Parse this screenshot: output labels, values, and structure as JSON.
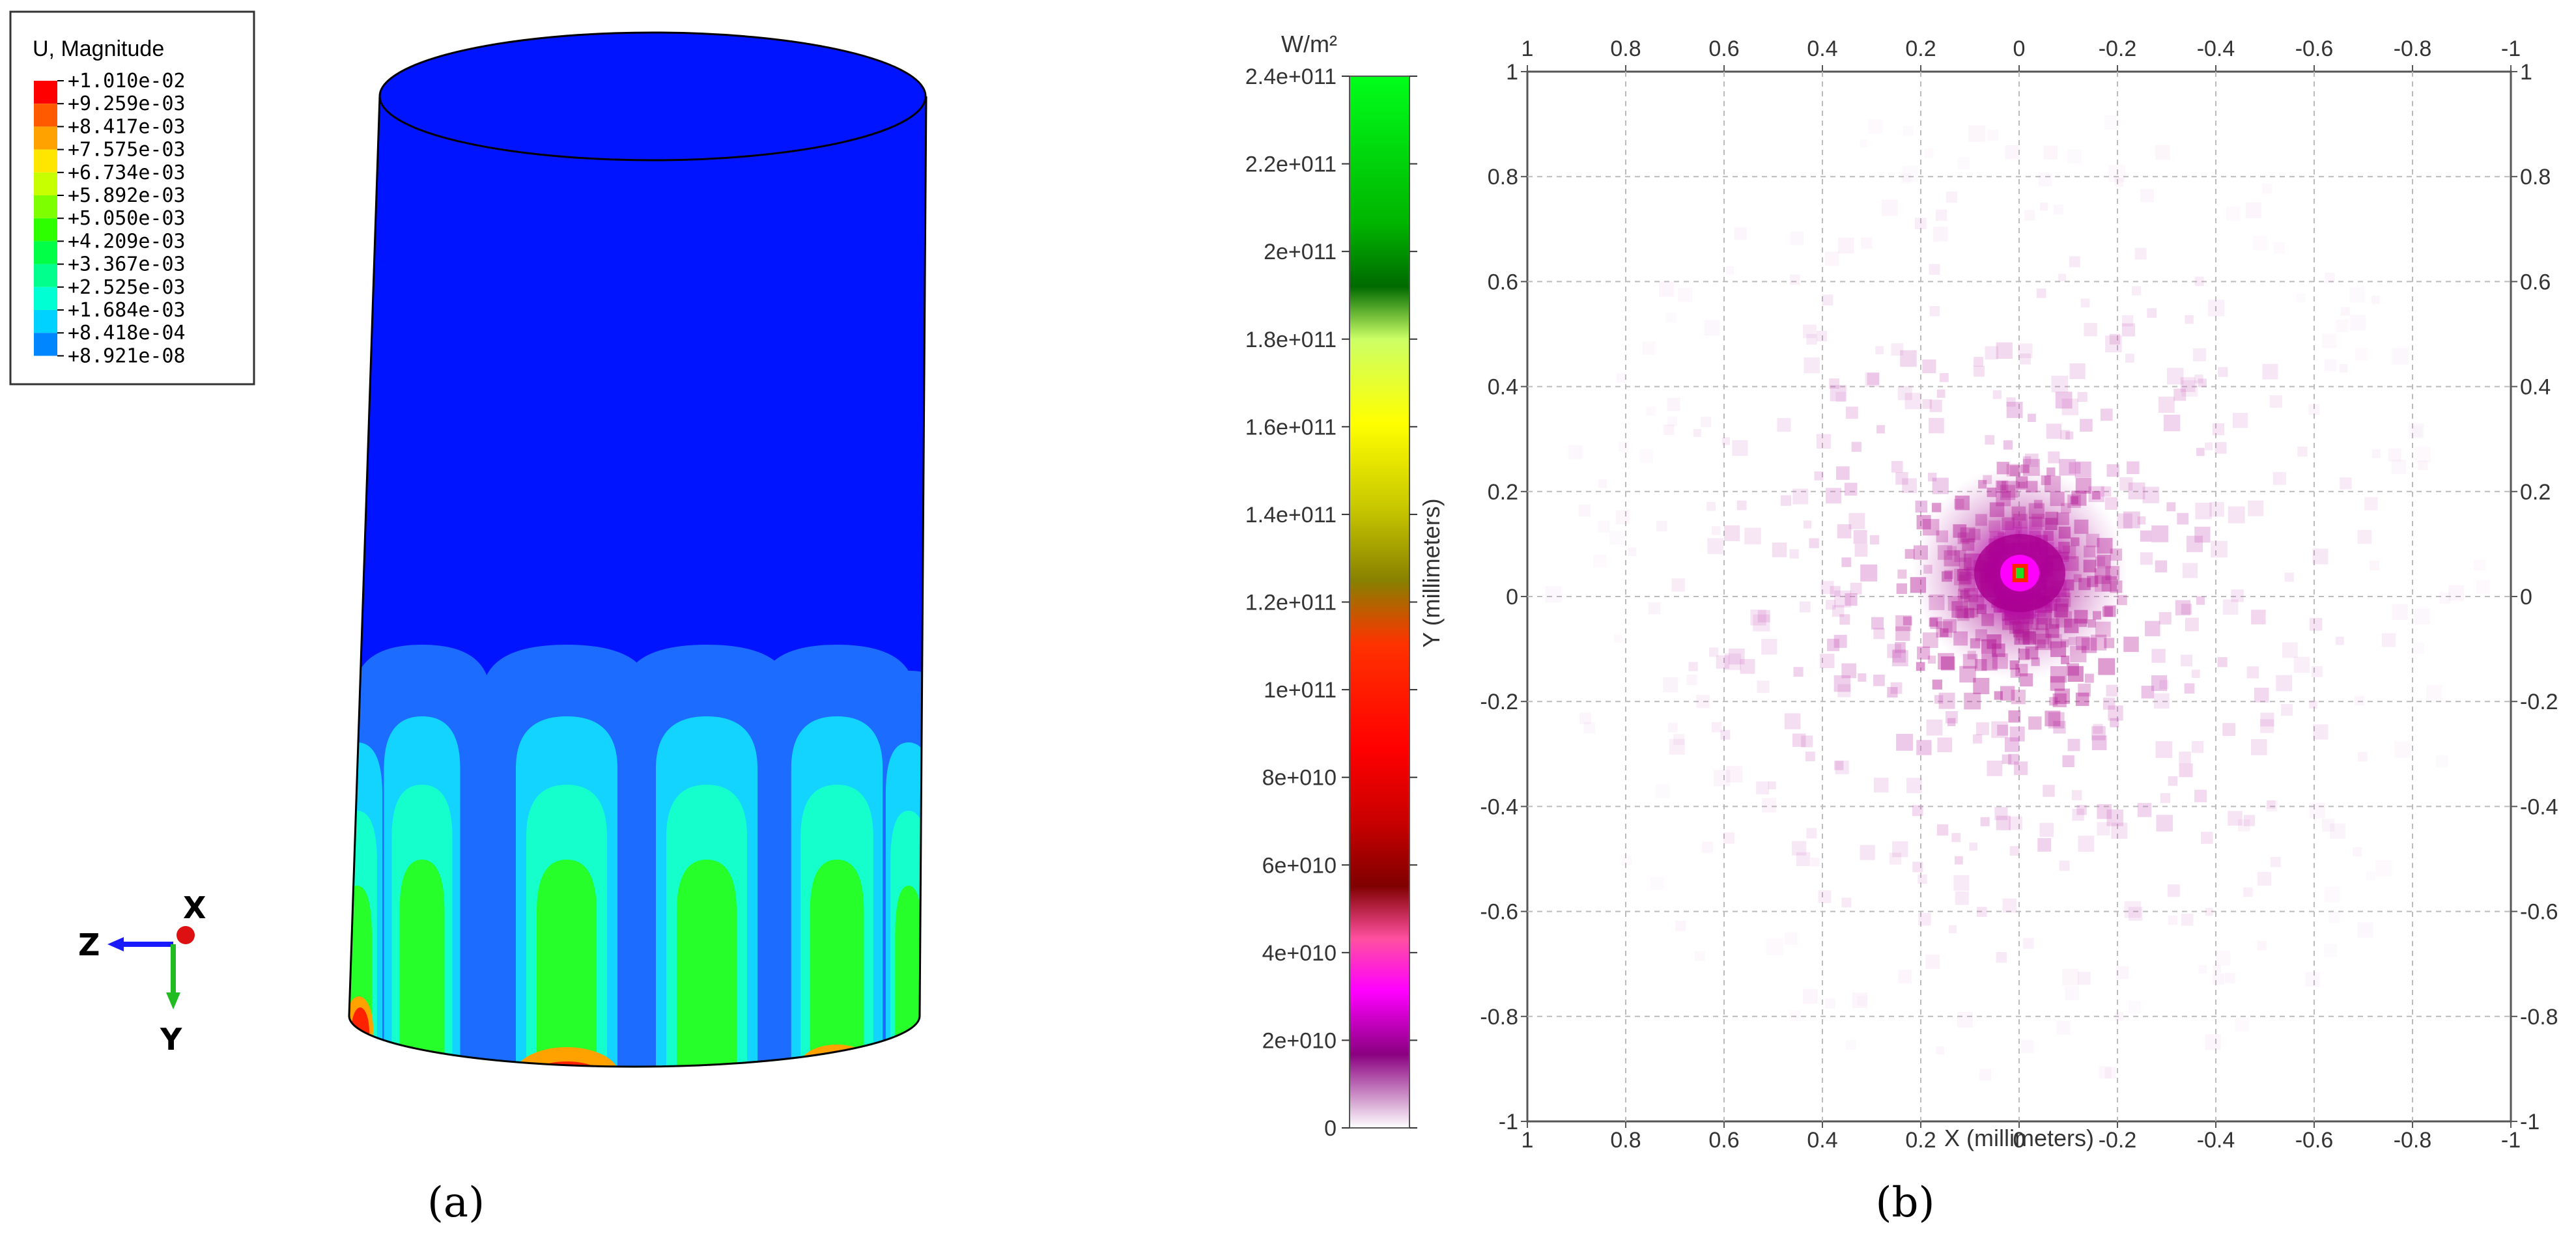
{
  "panel_a": {
    "caption": "(a)",
    "legend_title": "U, Magnitude",
    "legend_values": [
      "+1.010e-02",
      "+9.259e-03",
      "+8.417e-03",
      "+7.575e-03",
      "+6.734e-03",
      "+5.892e-03",
      "+5.050e-03",
      "+4.209e-03",
      "+3.367e-03",
      "+2.525e-03",
      "+1.684e-03",
      "+8.418e-04",
      "+8.921e-08"
    ],
    "legend_colors": [
      "#ff0000",
      "#ff5a00",
      "#ffa200",
      "#ffe600",
      "#c8ff00",
      "#7dff00",
      "#2dff00",
      "#00ff46",
      "#00ff8c",
      "#00ffd2",
      "#00d2ff",
      "#0087ff",
      "#0014ff"
    ],
    "axes": {
      "x": "X",
      "y": "Y",
      "z": "Z"
    },
    "colors": {
      "base": "#0014ff",
      "blue2": "#1c6cff",
      "cyan": "#13d4ff",
      "aqua": "#14ffcc",
      "green": "#26ff2a",
      "red": "#ff2200"
    }
  },
  "panel_b": {
    "caption": "(b)",
    "colorbar": {
      "unit": "W/m²",
      "ticks": [
        "2.4e+011",
        "2.2e+011",
        "2e+011",
        "1.8e+011",
        "1.6e+011",
        "1.4e+011",
        "1.2e+011",
        "1e+011",
        "8e+010",
        "6e+010",
        "4e+010",
        "2e+010",
        "0"
      ]
    }
  },
  "chart_data": {
    "type": "heatmap",
    "title": "",
    "xlabel": "X (millimeters)",
    "ylabel": "Y (millimeters)",
    "xlim": [
      1,
      -1
    ],
    "ylim": [
      -1,
      1
    ],
    "x_ticks": [
      "1",
      "0.8",
      "0.6",
      "0.4",
      "0.2",
      "0",
      "-0.2",
      "-0.4",
      "-0.6",
      "-0.8",
      "-1"
    ],
    "y_ticks": [
      "1",
      "0.8",
      "0.6",
      "0.4",
      "0.2",
      "0",
      "-0.2",
      "-0.4",
      "-0.6",
      "-0.8",
      "-1"
    ],
    "grid": true,
    "value_unit": "W/m²",
    "value_range": [
      0,
      240000000000.0
    ],
    "peak": {
      "x": 0,
      "y": 0,
      "value": 240000000000.0
    },
    "distribution": "irradiance concentrated at the origin, scattered speckle decaying outward to about ±0.8 mm"
  }
}
